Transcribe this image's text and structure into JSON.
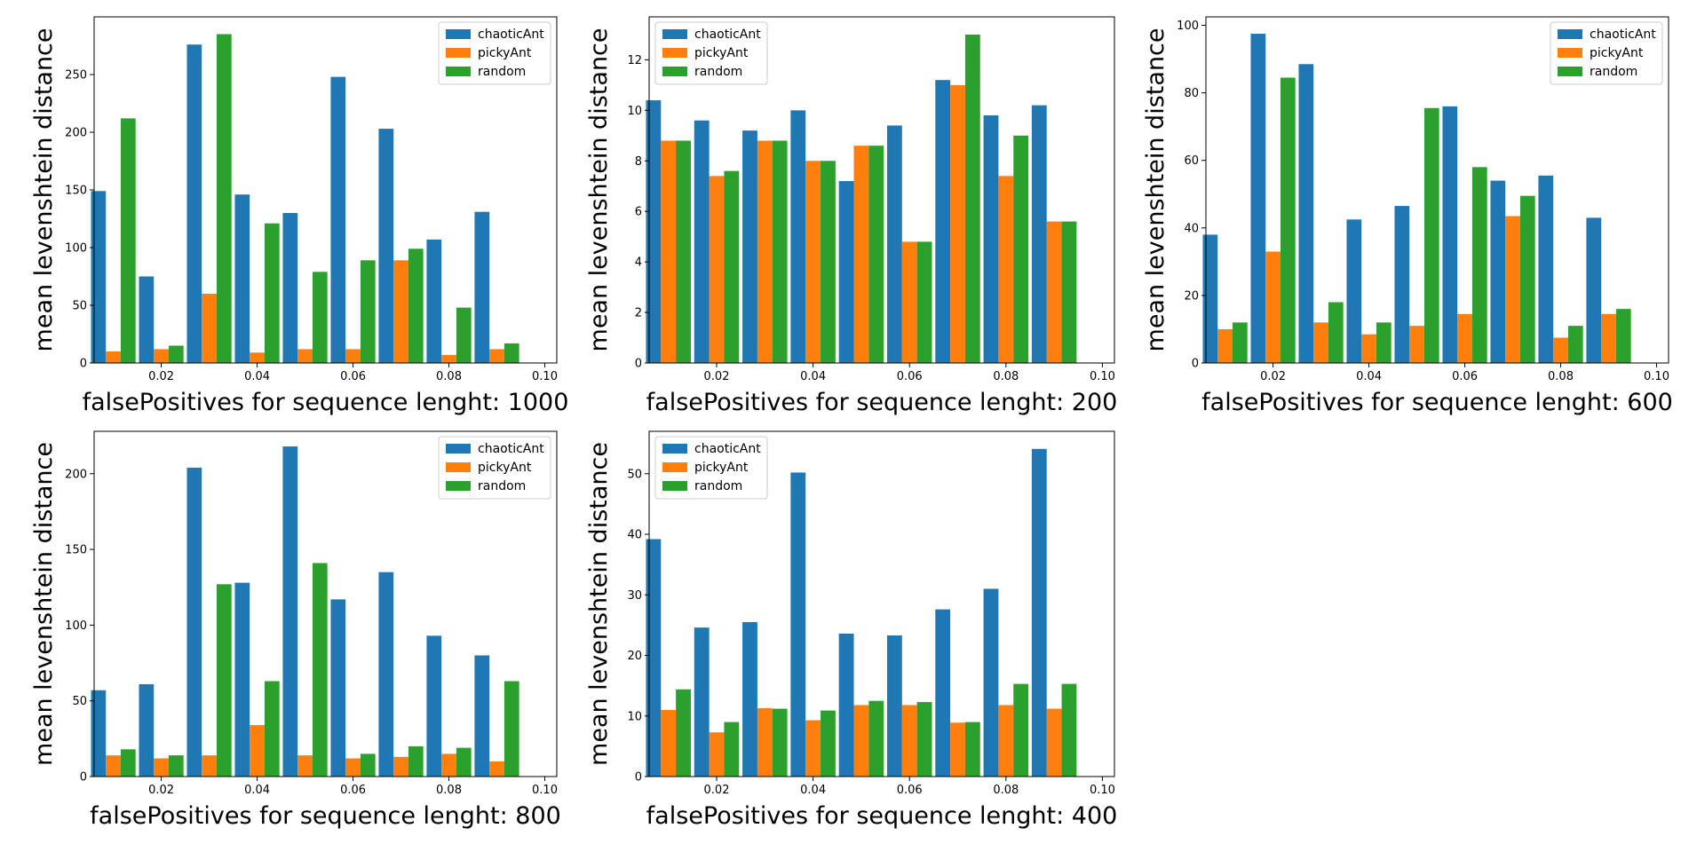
{
  "colors": {
    "chaoticAnt": "#1f77b4",
    "pickyAnt": "#ff7f0e",
    "random": "#2ca02c"
  },
  "chart_data": [
    {
      "type": "bar",
      "xlabel": "falsePositives for sequence lenght: 1000",
      "ylabel": "mean levenshtein distance",
      "x": [
        0.01,
        0.02,
        0.03,
        0.04,
        0.05,
        0.06,
        0.07,
        0.08,
        0.09
      ],
      "xticks": [
        "0.02",
        "0.04",
        "0.06",
        "0.08",
        "0.10"
      ],
      "xlim": [
        0.006,
        0.1025
      ],
      "ylim": [
        0,
        300
      ],
      "yticks": [
        "0",
        "50",
        "100",
        "150",
        "200",
        "250"
      ],
      "legend": "top-right",
      "series": [
        {
          "name": "chaoticAnt",
          "values": [
            149,
            75,
            276,
            146,
            130,
            248,
            203,
            107,
            131
          ]
        },
        {
          "name": "pickyAnt",
          "values": [
            10,
            12,
            60,
            9,
            12,
            12,
            89,
            7,
            12
          ]
        },
        {
          "name": "random",
          "values": [
            212,
            15,
            285,
            121,
            79,
            89,
            99,
            48,
            17
          ]
        }
      ]
    },
    {
      "type": "bar",
      "xlabel": "falsePositives for sequence lenght: 200",
      "ylabel": "mean levenshtein distance",
      "x": [
        0.01,
        0.02,
        0.03,
        0.04,
        0.05,
        0.06,
        0.07,
        0.08,
        0.09
      ],
      "xticks": [
        "0.02",
        "0.04",
        "0.06",
        "0.08",
        "0.10"
      ],
      "xlim": [
        0.006,
        0.1025
      ],
      "ylim": [
        0,
        13.7
      ],
      "yticks": [
        "0",
        "2",
        "4",
        "6",
        "8",
        "10",
        "12"
      ],
      "legend": "top-left",
      "series": [
        {
          "name": "chaoticAnt",
          "values": [
            10.4,
            9.6,
            9.2,
            10.0,
            7.2,
            9.4,
            11.2,
            9.8,
            10.2
          ]
        },
        {
          "name": "pickyAnt",
          "values": [
            8.8,
            7.4,
            8.8,
            8.0,
            8.6,
            4.8,
            11.0,
            7.4,
            5.6
          ]
        },
        {
          "name": "random",
          "values": [
            8.8,
            7.6,
            8.8,
            8.0,
            8.6,
            4.8,
            13.0,
            9.0,
            5.6
          ]
        }
      ]
    },
    {
      "type": "bar",
      "xlabel": "falsePositives for sequence lenght: 600",
      "ylabel": "mean levenshtein distance",
      "x": [
        0.01,
        0.02,
        0.03,
        0.04,
        0.05,
        0.06,
        0.07,
        0.08,
        0.09
      ],
      "xticks": [
        "0.02",
        "0.04",
        "0.06",
        "0.08",
        "0.10"
      ],
      "xlim": [
        0.006,
        0.1025
      ],
      "ylim": [
        0,
        102.5
      ],
      "yticks": [
        "0",
        "20",
        "40",
        "60",
        "80",
        "100"
      ],
      "legend": "top-right",
      "series": [
        {
          "name": "chaoticAnt",
          "values": [
            38,
            97.5,
            88.5,
            42.5,
            46.5,
            76,
            54,
            55.5,
            43
          ]
        },
        {
          "name": "pickyAnt",
          "values": [
            10,
            33,
            12,
            8.5,
            11,
            14.5,
            43.5,
            7.5,
            14.5
          ]
        },
        {
          "name": "random",
          "values": [
            12,
            84.5,
            18,
            12,
            75.5,
            58,
            49.5,
            11,
            16
          ]
        }
      ]
    },
    {
      "type": "bar",
      "xlabel": "falsePositives for sequence lenght: 800",
      "ylabel": "mean levenshtein distance",
      "x": [
        0.01,
        0.02,
        0.03,
        0.04,
        0.05,
        0.06,
        0.07,
        0.08,
        0.09
      ],
      "xticks": [
        "0.02",
        "0.04",
        "0.06",
        "0.08",
        "0.10"
      ],
      "xlim": [
        0.006,
        0.1025
      ],
      "ylim": [
        0,
        228
      ],
      "yticks": [
        "0",
        "50",
        "100",
        "150",
        "200"
      ],
      "legend": "top-right",
      "series": [
        {
          "name": "chaoticAnt",
          "values": [
            57,
            61,
            204,
            128,
            218,
            117,
            135,
            93,
            80
          ]
        },
        {
          "name": "pickyAnt",
          "values": [
            14,
            12,
            14,
            34,
            14,
            12,
            13,
            15,
            10
          ]
        },
        {
          "name": "random",
          "values": [
            18,
            14,
            127,
            63,
            141,
            15,
            20,
            19,
            63
          ]
        }
      ]
    },
    {
      "type": "bar",
      "xlabel": "falsePositives for sequence lenght: 400",
      "ylabel": "mean levenshtein distance",
      "x": [
        0.01,
        0.02,
        0.03,
        0.04,
        0.05,
        0.06,
        0.07,
        0.08,
        0.09
      ],
      "xticks": [
        "0.02",
        "0.04",
        "0.06",
        "0.08",
        "0.10"
      ],
      "xlim": [
        0.006,
        0.1025
      ],
      "ylim": [
        0,
        57
      ],
      "yticks": [
        "0",
        "10",
        "20",
        "30",
        "40",
        "50"
      ],
      "legend": "top-left",
      "series": [
        {
          "name": "chaoticAnt",
          "values": [
            39.2,
            24.6,
            25.5,
            50.2,
            23.6,
            23.3,
            27.6,
            31.0,
            54.1
          ]
        },
        {
          "name": "pickyAnt",
          "values": [
            11.0,
            7.3,
            11.3,
            9.3,
            11.8,
            11.8,
            8.9,
            11.8,
            11.2
          ]
        },
        {
          "name": "random",
          "values": [
            14.4,
            9.0,
            11.2,
            10.9,
            12.5,
            12.3,
            9.0,
            15.3,
            15.3
          ]
        }
      ]
    }
  ]
}
